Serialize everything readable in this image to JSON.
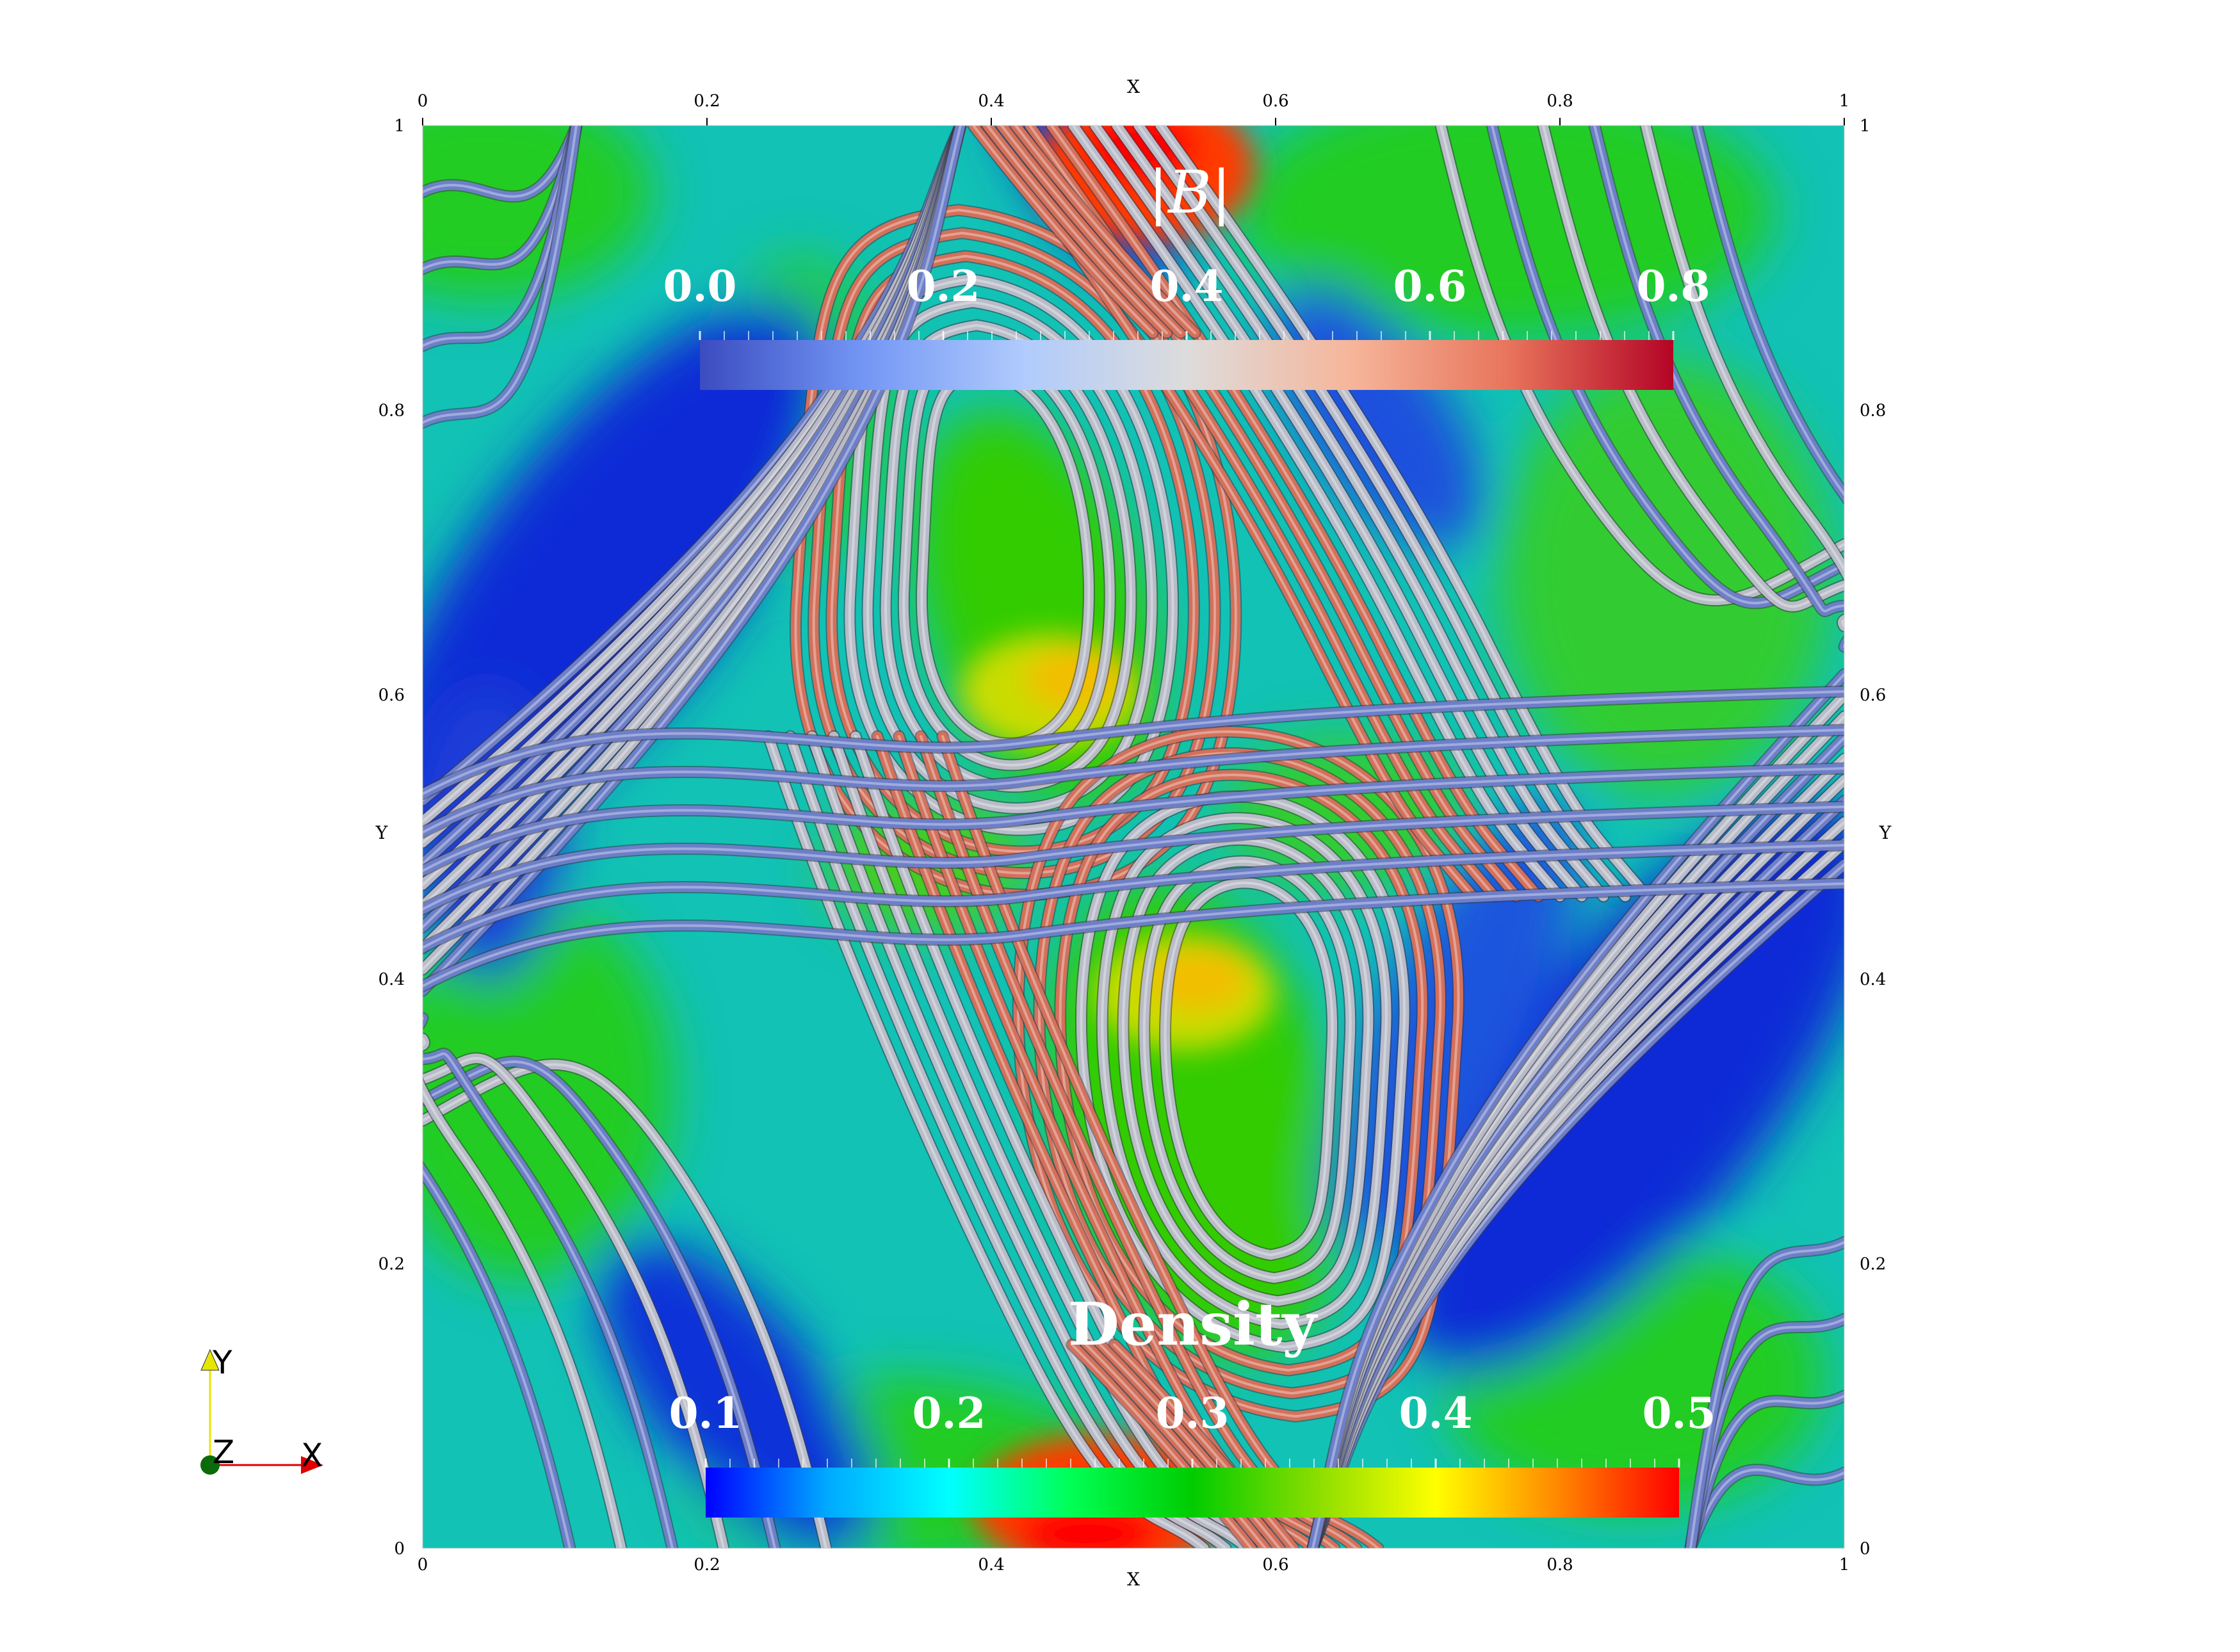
{
  "axes": {
    "x_name": "X",
    "y_name": "Y",
    "x_ticks": [
      "0",
      "0.2",
      "0.4",
      "0.6",
      "0.8",
      "1"
    ],
    "y_ticks": [
      "0",
      "0.2",
      "0.4",
      "0.6",
      "0.8",
      "1"
    ],
    "x_range": [
      0,
      1
    ],
    "y_range": [
      0,
      1
    ]
  },
  "colorbar_b": {
    "title": "|B|",
    "ticks": [
      "0.0",
      "0.2",
      "0.4",
      "0.6",
      "0.8"
    ],
    "range": [
      0.0,
      0.8
    ],
    "colormap": [
      "#3b4cc0",
      "#7396f5",
      "#b0cbfc",
      "#dddcdc",
      "#f6b69b",
      "#e7735a",
      "#b40426"
    ]
  },
  "colorbar_density": {
    "title": "Density",
    "ticks": [
      "0.1",
      "0.2",
      "0.3",
      "0.4",
      "0.5"
    ],
    "range": [
      0.1,
      0.5
    ],
    "colormap": [
      "#0000ff",
      "#00aaff",
      "#00ffff",
      "#00ff55",
      "#00cc00",
      "#88dd00",
      "#ffff00",
      "#ff8800",
      "#ff0000"
    ]
  },
  "orientation_triad": {
    "x_label": "X",
    "y_label": "Y",
    "z_label": "Z",
    "x_color": "#e00000",
    "y_color": "#e6e600",
    "z_color": "#0a6b0a"
  },
  "field_colors": {
    "background": "#12c2b5",
    "high_density": "#ff2a00",
    "mid_density": "#22cc00",
    "low_density": "#0b2bd6",
    "tube_low": "#6d7fc9",
    "tube_mid": "#b9bcc8",
    "tube_high": "#d4705a"
  }
}
